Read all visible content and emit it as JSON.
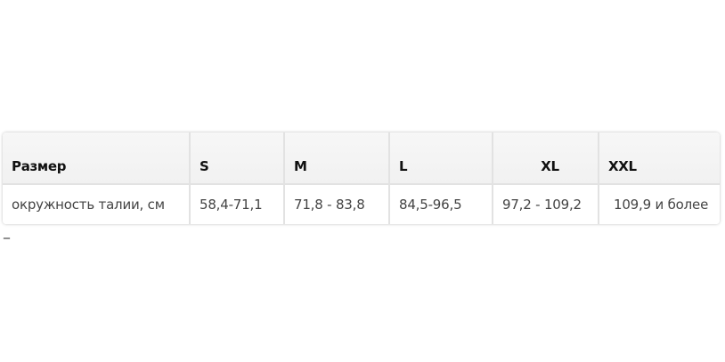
{
  "table": {
    "header": [
      "Размер",
      "S",
      "M",
      "L",
      "XL",
      "XXL"
    ],
    "rows": [
      [
        "окружность талии, см",
        "58,4-71,1",
        "71,8 - 83,8",
        "84,5-96,5",
        "97,2 - 109,2",
        "109,9 и более"
      ]
    ]
  },
  "cursor": "_"
}
